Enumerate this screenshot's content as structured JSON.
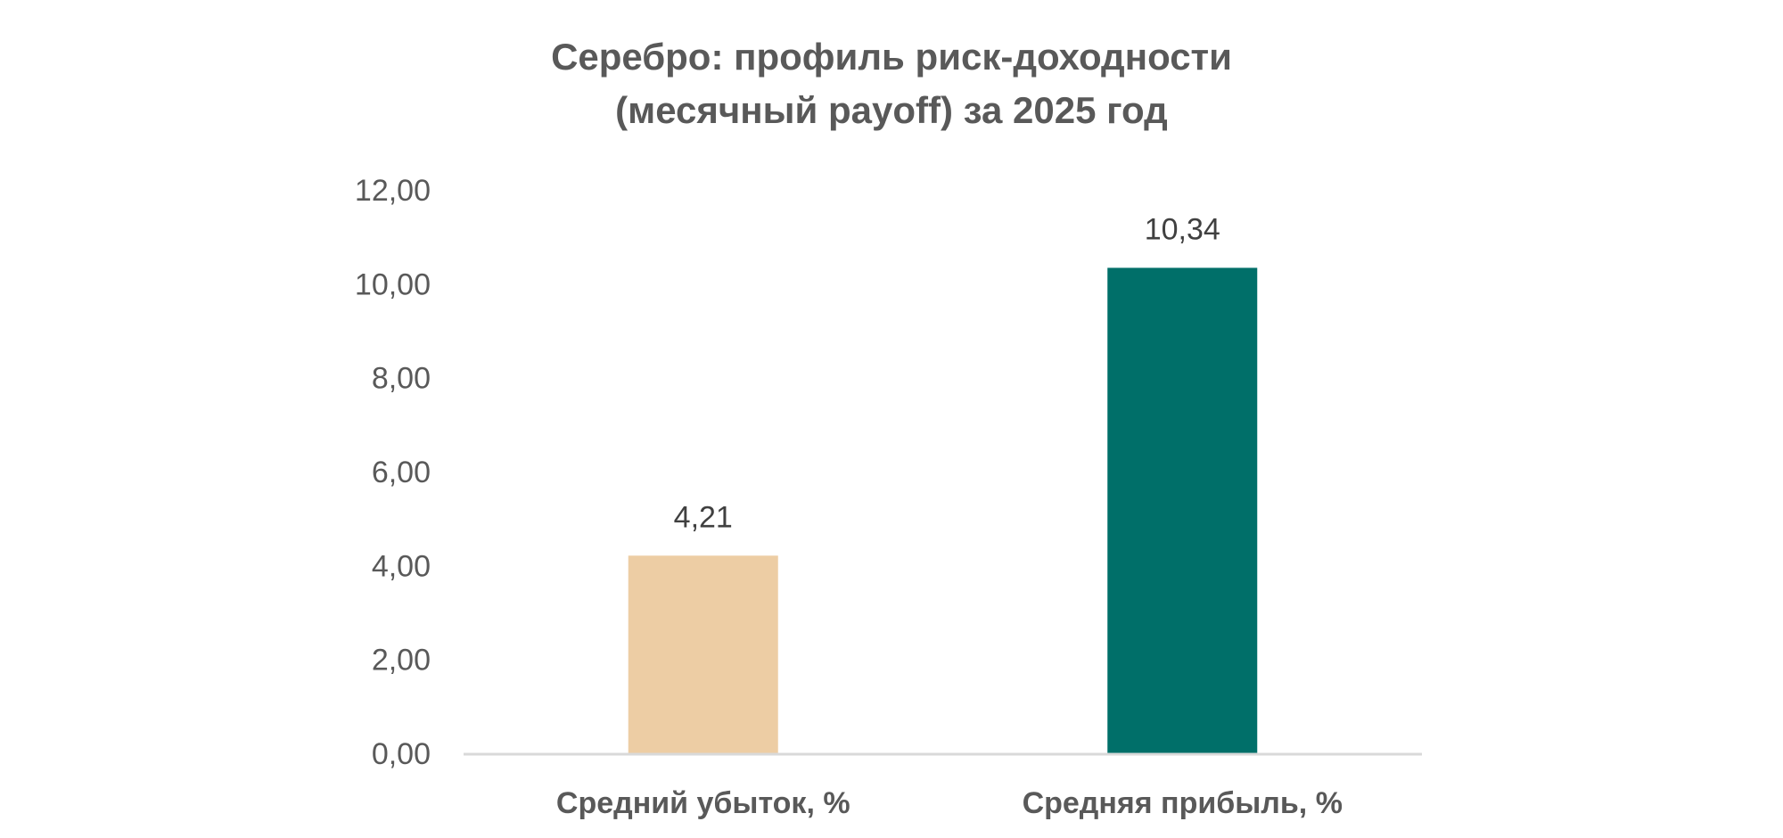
{
  "chart_data": {
    "type": "bar",
    "title_line1": "Серебро: профиль риск-доходности",
    "title_line2": "(месячный payoff) за 2025 год",
    "categories": [
      "Средний убыток, %",
      "Средняя прибыль, %"
    ],
    "values": [
      4.21,
      10.34
    ],
    "value_labels": [
      "4,21",
      "10,34"
    ],
    "colors": [
      "#EDCDA4",
      "#006F69"
    ],
    "ylim": [
      0,
      12
    ],
    "yticks": [
      "0,00",
      "2,00",
      "4,00",
      "6,00",
      "8,00",
      "10,00",
      "12,00"
    ],
    "ytick_step": 2,
    "xlabel": "",
    "ylabel": "",
    "grid": false,
    "legend": "none"
  }
}
